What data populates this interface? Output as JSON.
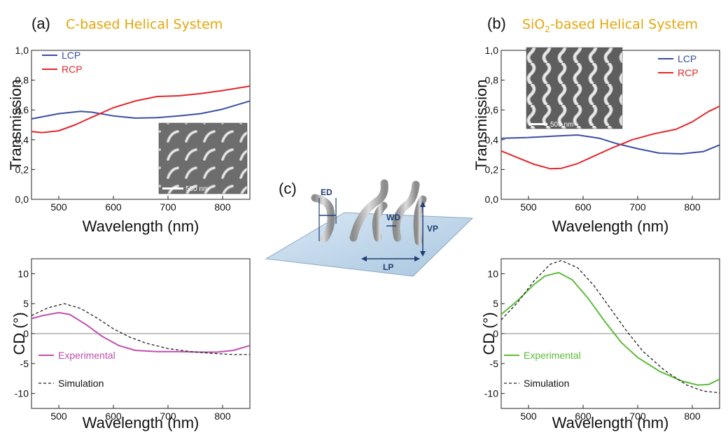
{
  "panels": {
    "a": {
      "letter": "(a)",
      "title": "C-based Helical System"
    },
    "b": {
      "letter": "(b)",
      "title_pre": "SiO",
      "title_sub": "2",
      "title_post": "-based Helical System"
    },
    "c": {
      "letter": "(c)"
    }
  },
  "diagram_labels": {
    "ed": "ED",
    "wd": "WD",
    "vp": "VP",
    "lp": "LP"
  },
  "insets": {
    "a_scale": "500 nm",
    "b_scale": "500 nm"
  },
  "chart_data": [
    {
      "id": "a_trans",
      "type": "line",
      "xlabel": "Wavelength (nm)",
      "ylabel": "Transmission",
      "xlim": [
        450,
        850
      ],
      "ylim": [
        0,
        1.0
      ],
      "xticks": [
        "500",
        "600",
        "700",
        "800"
      ],
      "yticks": [
        "0,0",
        "0,2",
        "0,4",
        "0,6",
        "0,8",
        "1,0"
      ],
      "legend_position": "top-left",
      "series": [
        {
          "name": "LCP",
          "color": "#3A4FA2",
          "dashed": false,
          "x": [
            450,
            500,
            540,
            560,
            600,
            640,
            680,
            720,
            760,
            800,
            850
          ],
          "y": [
            0.54,
            0.575,
            0.59,
            0.585,
            0.56,
            0.545,
            0.548,
            0.56,
            0.575,
            0.605,
            0.66
          ]
        },
        {
          "name": "RCP",
          "color": "#E5262A",
          "dashed": false,
          "x": [
            450,
            470,
            500,
            530,
            560,
            600,
            640,
            680,
            720,
            760,
            800,
            850
          ],
          "y": [
            0.455,
            0.448,
            0.46,
            0.5,
            0.55,
            0.615,
            0.66,
            0.69,
            0.695,
            0.71,
            0.73,
            0.76
          ]
        }
      ]
    },
    {
      "id": "a_cd",
      "type": "line",
      "xlabel": "Wavelength (nm)",
      "ylabel": "CD (°)",
      "xlim": [
        450,
        850
      ],
      "ylim": [
        -12.5,
        12.5
      ],
      "xticks": [
        "500",
        "600",
        "700",
        "800"
      ],
      "yticks": [
        "-10",
        "-5",
        "0",
        "5",
        "10"
      ],
      "zero_line": true,
      "legend_position": "bottom-left",
      "series": [
        {
          "name": "Experimental",
          "color": "#C04FAE",
          "dashed": false,
          "x": [
            450,
            470,
            500,
            520,
            550,
            580,
            610,
            640,
            680,
            720,
            760,
            790,
            820,
            850
          ],
          "y": [
            2.5,
            3.0,
            3.5,
            3.2,
            1.5,
            -0.5,
            -2.0,
            -2.8,
            -3.0,
            -3.0,
            -3.1,
            -3.1,
            -2.8,
            -2.0
          ]
        },
        {
          "name": "Simulation",
          "color": "#222222",
          "dashed": true,
          "x": [
            450,
            480,
            510,
            540,
            570,
            600,
            630,
            660,
            700,
            740,
            780,
            820,
            850
          ],
          "y": [
            3.0,
            4.3,
            5.0,
            4.2,
            2.6,
            0.8,
            -0.6,
            -1.6,
            -2.5,
            -3.0,
            -3.3,
            -3.5,
            -3.5
          ]
        }
      ]
    },
    {
      "id": "b_trans",
      "type": "line",
      "xlabel": "Wavelength (nm)",
      "ylabel": "Transmission",
      "xlim": [
        450,
        850
      ],
      "ylim": [
        0,
        1.0
      ],
      "xticks": [
        "500",
        "600",
        "700",
        "800"
      ],
      "yticks": [
        "0,0",
        "0,2",
        "0,4",
        "0,6",
        "0,8",
        "1,0"
      ],
      "legend_position": "top-right",
      "series": [
        {
          "name": "LCP",
          "color": "#3A4FA2",
          "dashed": false,
          "x": [
            450,
            500,
            550,
            590,
            630,
            660,
            700,
            740,
            780,
            820,
            850
          ],
          "y": [
            0.41,
            0.415,
            0.425,
            0.432,
            0.41,
            0.375,
            0.34,
            0.31,
            0.305,
            0.32,
            0.365
          ]
        },
        {
          "name": "RCP",
          "color": "#E5262A",
          "dashed": false,
          "x": [
            450,
            480,
            510,
            540,
            560,
            590,
            620,
            650,
            690,
            730,
            770,
            800,
            830,
            850
          ],
          "y": [
            0.325,
            0.28,
            0.235,
            0.205,
            0.208,
            0.24,
            0.29,
            0.34,
            0.4,
            0.44,
            0.47,
            0.52,
            0.59,
            0.625
          ]
        }
      ]
    },
    {
      "id": "b_cd",
      "type": "line",
      "xlabel": "Wavelength (nm)",
      "ylabel": "CD (°)",
      "xlim": [
        450,
        850
      ],
      "ylim": [
        -12.5,
        12.5
      ],
      "xticks": [
        "500",
        "600",
        "700",
        "800"
      ],
      "yticks": [
        "-10",
        "-5",
        "0",
        "5",
        "10"
      ],
      "zero_line": true,
      "legend_position": "bottom-left",
      "series": [
        {
          "name": "Experimental",
          "color": "#5DBB3A",
          "dashed": false,
          "x": [
            450,
            480,
            510,
            530,
            555,
            580,
            610,
            640,
            670,
            700,
            740,
            780,
            810,
            830,
            850
          ],
          "y": [
            3.2,
            5.5,
            8.2,
            9.6,
            10.2,
            9.0,
            5.8,
            2.0,
            -1.5,
            -4.0,
            -6.3,
            -7.9,
            -8.6,
            -8.5,
            -7.6
          ]
        },
        {
          "name": "Simulation",
          "color": "#222222",
          "dashed": true,
          "x": [
            450,
            480,
            510,
            540,
            560,
            590,
            620,
            650,
            680,
            710,
            750,
            790,
            820,
            850
          ],
          "y": [
            2.3,
            5.2,
            8.8,
            11.6,
            12.2,
            11.0,
            8.0,
            4.2,
            0.4,
            -3.0,
            -6.2,
            -8.6,
            -9.6,
            -9.9
          ]
        }
      ]
    }
  ]
}
